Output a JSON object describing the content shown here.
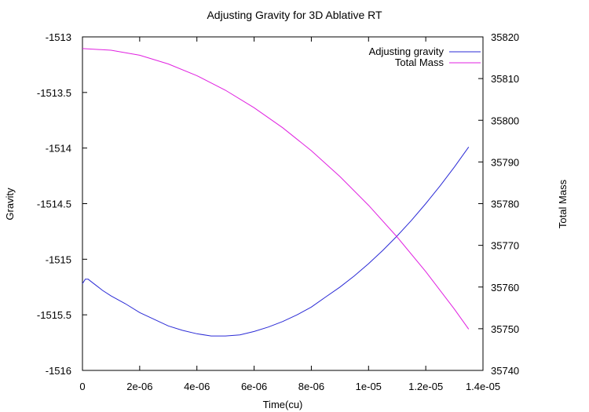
{
  "chart_data": {
    "type": "line",
    "title": "Adjusting Gravity for 3D Ablative RT",
    "xlabel": "Time(cu)",
    "ylabel": "Gravity",
    "y2label": "Total Mass",
    "xlim": [
      0,
      1.4e-05
    ],
    "ylim": [
      -1516,
      -1513
    ],
    "y2lim": [
      35740,
      35820
    ],
    "x_ticks": [
      "0",
      "2e-06",
      "4e-06",
      "6e-06",
      "8e-06",
      "1e-05",
      "1.2e-05",
      "1.4e-05"
    ],
    "y_ticks": [
      "-1513",
      "-1513.5",
      "-1514",
      "-1514.5",
      "-1515",
      "-1515.5",
      "-1516"
    ],
    "y2_ticks": [
      "35820",
      "35810",
      "35800",
      "35790",
      "35780",
      "35770",
      "35760",
      "35750",
      "35740"
    ],
    "legend_position": "top-right",
    "grid": false,
    "series": [
      {
        "name": "Adjusting gravity",
        "axis": "left",
        "color": "#2b2bd6",
        "x": [
          0,
          1e-07,
          2e-07,
          3e-07,
          5e-07,
          7e-07,
          1e-06,
          1.5e-06,
          2e-06,
          2.5e-06,
          3e-06,
          3.5e-06,
          4e-06,
          4.5e-06,
          5e-06,
          5.5e-06,
          6e-06,
          6.5e-06,
          7e-06,
          7.5e-06,
          8e-06,
          8.5e-06,
          9e-06,
          9.5e-06,
          1e-05,
          1.05e-05,
          1.1e-05,
          1.15e-05,
          1.2e-05,
          1.25e-05,
          1.3e-05,
          1.35e-05
        ],
        "values": [
          -1515.22,
          -1515.18,
          -1515.18,
          -1515.2,
          -1515.24,
          -1515.28,
          -1515.33,
          -1515.4,
          -1515.48,
          -1515.54,
          -1515.6,
          -1515.64,
          -1515.67,
          -1515.69,
          -1515.69,
          -1515.68,
          -1515.65,
          -1515.61,
          -1515.56,
          -1515.5,
          -1515.43,
          -1515.34,
          -1515.25,
          -1515.15,
          -1515.04,
          -1514.92,
          -1514.79,
          -1514.65,
          -1514.5,
          -1514.34,
          -1514.17,
          -1513.99
        ]
      },
      {
        "name": "Total Mass",
        "axis": "right",
        "color": "#e020e0",
        "x": [
          0,
          1e-06,
          2e-06,
          3e-06,
          4e-06,
          5e-06,
          6e-06,
          7e-06,
          8e-06,
          9e-06,
          1e-05,
          1.1e-05,
          1.2e-05,
          1.3e-05,
          1.35e-05
        ],
        "values": [
          35817.2,
          35816.8,
          35815.6,
          35813.5,
          35810.7,
          35807.2,
          35803.0,
          35798.2,
          35792.7,
          35786.5,
          35779.6,
          35772.0,
          35763.7,
          35754.7,
          35749.9
        ]
      }
    ]
  }
}
